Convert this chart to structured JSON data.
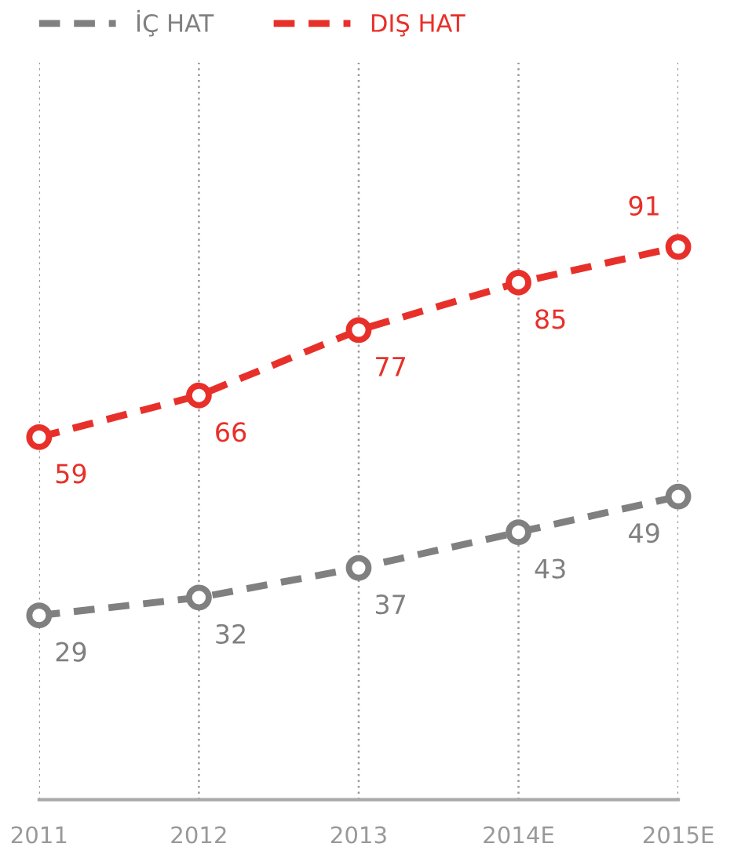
{
  "chart_data": {
    "type": "line",
    "categories": [
      "2011",
      "2012",
      "2013",
      "2014E",
      "2015E"
    ],
    "series": [
      {
        "name": "İÇ HAT",
        "color": "#808080",
        "values": [
          29,
          32,
          37,
          43,
          49
        ]
      },
      {
        "name": "DIŞ HAT",
        "color": "#e8302a",
        "values": [
          59,
          66,
          77,
          85,
          91
        ]
      }
    ],
    "data_labels": true,
    "grid": "x",
    "legend": "top left",
    "marker": "circle",
    "line_style": "dashed",
    "tick_labels": "x"
  }
}
